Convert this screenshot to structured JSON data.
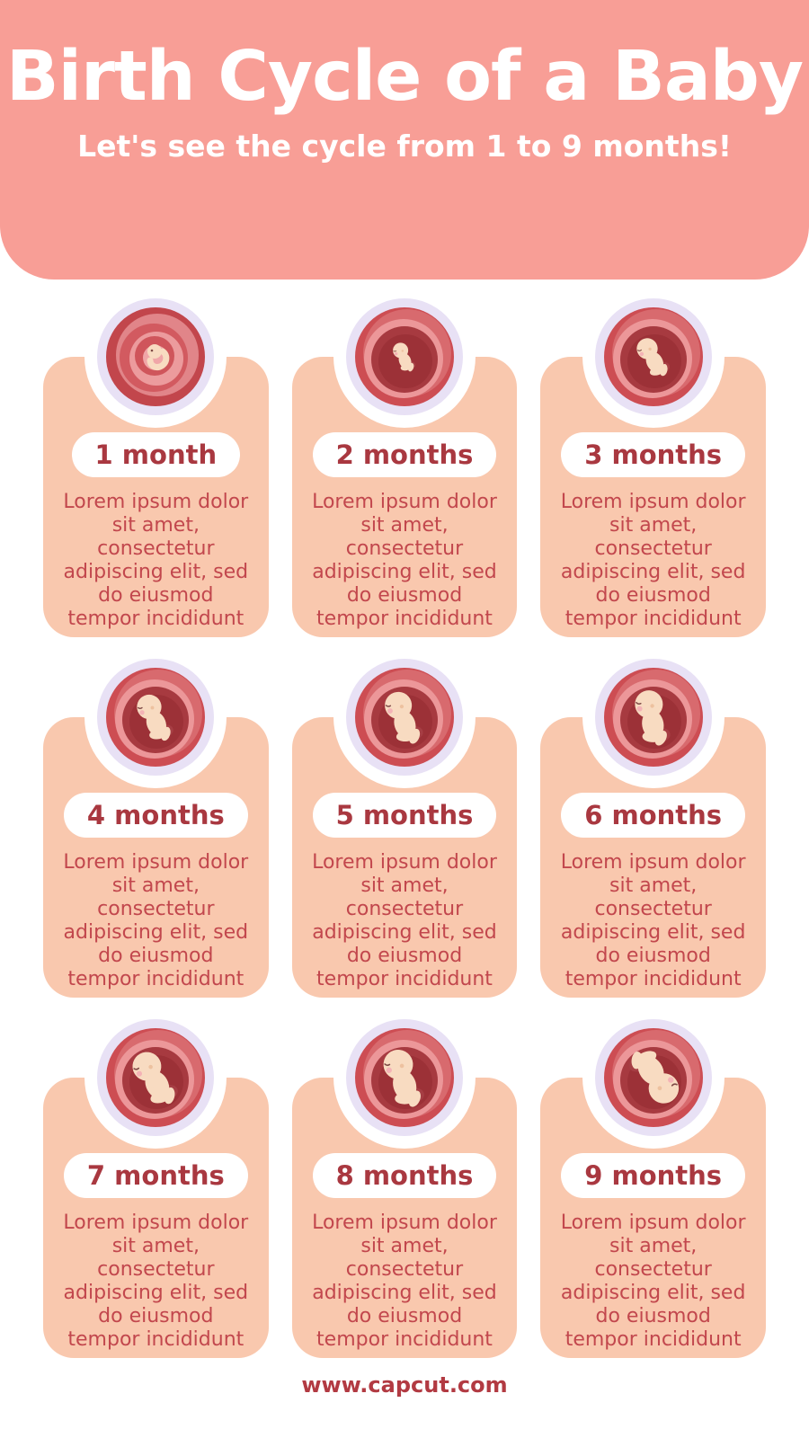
{
  "header": {
    "title": "Birth Cycle of a Baby",
    "subtitle": "Let's see the cycle from 1 to 9 months!"
  },
  "shared": {
    "description_lines": [
      "Lorem ipsum dolor",
      "sit amet,",
      "consectetur",
      "adipiscing elit, sed",
      "do eiusmod",
      "tempor incididunt"
    ]
  },
  "cards": [
    {
      "label": "1 month",
      "illustration": "embryo-in-womb-month-1",
      "type": "embryo",
      "scale": 1.0,
      "rotate": 0
    },
    {
      "label": "2 months",
      "illustration": "fetus-in-womb-month-2",
      "type": "fetus",
      "scale": 0.55,
      "rotate": 0
    },
    {
      "label": "3 months",
      "illustration": "fetus-in-womb-month-3",
      "type": "fetus",
      "scale": 0.75,
      "rotate": -6
    },
    {
      "label": "4 months",
      "illustration": "fetus-in-womb-month-4",
      "type": "fetus",
      "scale": 0.88,
      "rotate": 0
    },
    {
      "label": "5 months",
      "illustration": "fetus-in-womb-month-5",
      "type": "fetus",
      "scale": 0.97,
      "rotate": 4
    },
    {
      "label": "6 months",
      "illustration": "fetus-in-womb-month-6",
      "type": "fetus",
      "scale": 1.0,
      "rotate": 12
    },
    {
      "label": "7 months",
      "illustration": "fetus-in-womb-month-7",
      "type": "fetus",
      "scale": 1.03,
      "rotate": -6
    },
    {
      "label": "8 months",
      "illustration": "fetus-in-womb-month-8",
      "type": "fetus",
      "scale": 1.06,
      "rotate": 6
    },
    {
      "label": "9 months",
      "illustration": "fetus-in-womb-month-9-head-down",
      "type": "fetus",
      "scale": 1.08,
      "rotate": 168
    }
  ],
  "footer": {
    "website": "www.capcut.com"
  },
  "colors": {
    "header_bg": "#f89e96",
    "title_text": "#ffffff",
    "card_bg": "#f9c8ae",
    "pill_bg": "#ffffff",
    "label_text": "#a93840",
    "body_text": "#c2474d",
    "footer_text": "#b23a42",
    "ring": "#e8e1f5"
  },
  "illustration_palette": {
    "womb_outer": "#cd4d53",
    "womb_mid": "#d86a6e",
    "womb_light": "#ec9799",
    "womb_dark": "#a73a40",
    "womb_darker": "#9c3137",
    "cord": "#a63e44",
    "skin": "#f8dbc1",
    "cheek": "#f4b3b6",
    "ear": "#edc19f",
    "eye": "#7e4a46",
    "embryo_rings": [
      "#c2464c",
      "#e18589",
      "#d25a60",
      "#ec9b9d",
      "#cf555b",
      "#f0a6a8"
    ]
  }
}
